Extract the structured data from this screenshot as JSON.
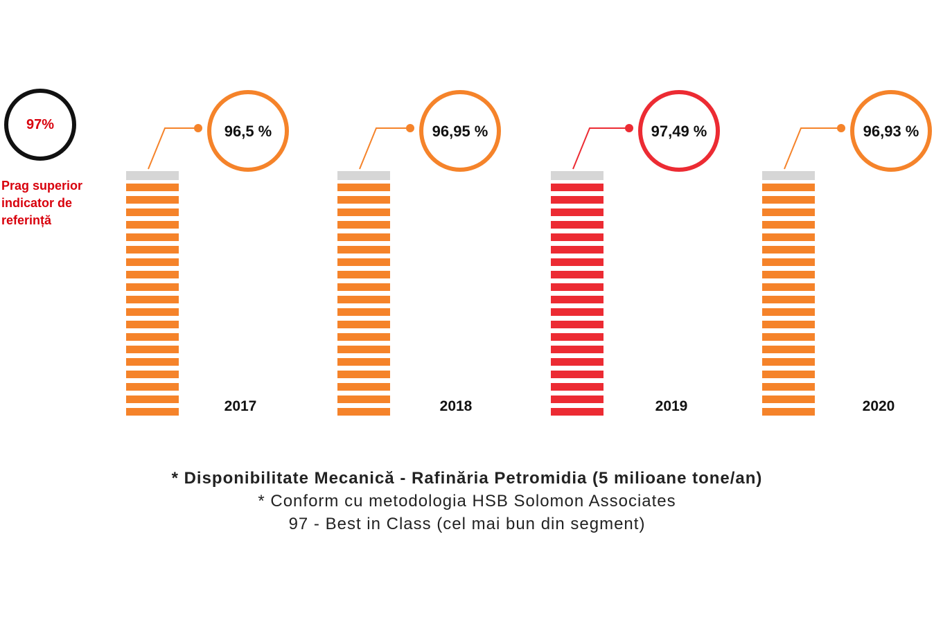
{
  "reference": {
    "value_label": "97%",
    "label": "Prag superior indicator de referință"
  },
  "colors": {
    "normal": "#f5832a",
    "highlight": "#ec2b33",
    "cap": "#d6d6d6",
    "reference_ring": "#111111",
    "reference_text": "#d8000c"
  },
  "chart_data": {
    "type": "bar",
    "categories": [
      "2017",
      "2018",
      "2019",
      "2020"
    ],
    "values": [
      96.5,
      96.95,
      97.49,
      96.93
    ],
    "value_labels": [
      "96,5 %",
      "96,95 %",
      "97,49 %",
      "96,93 %"
    ],
    "highlight": [
      false,
      false,
      true,
      false
    ],
    "reference_value": 97,
    "segments_per_bar": 19
  },
  "footer": {
    "line1": "* Disponibilitate Mecanică - Rafinăria Petromidia (5 milioane tone/an)",
    "line2": "* Conform cu metodologia HSB Solomon Associates",
    "line3": "97 - Best in Class (cel mai bun din segment)"
  }
}
